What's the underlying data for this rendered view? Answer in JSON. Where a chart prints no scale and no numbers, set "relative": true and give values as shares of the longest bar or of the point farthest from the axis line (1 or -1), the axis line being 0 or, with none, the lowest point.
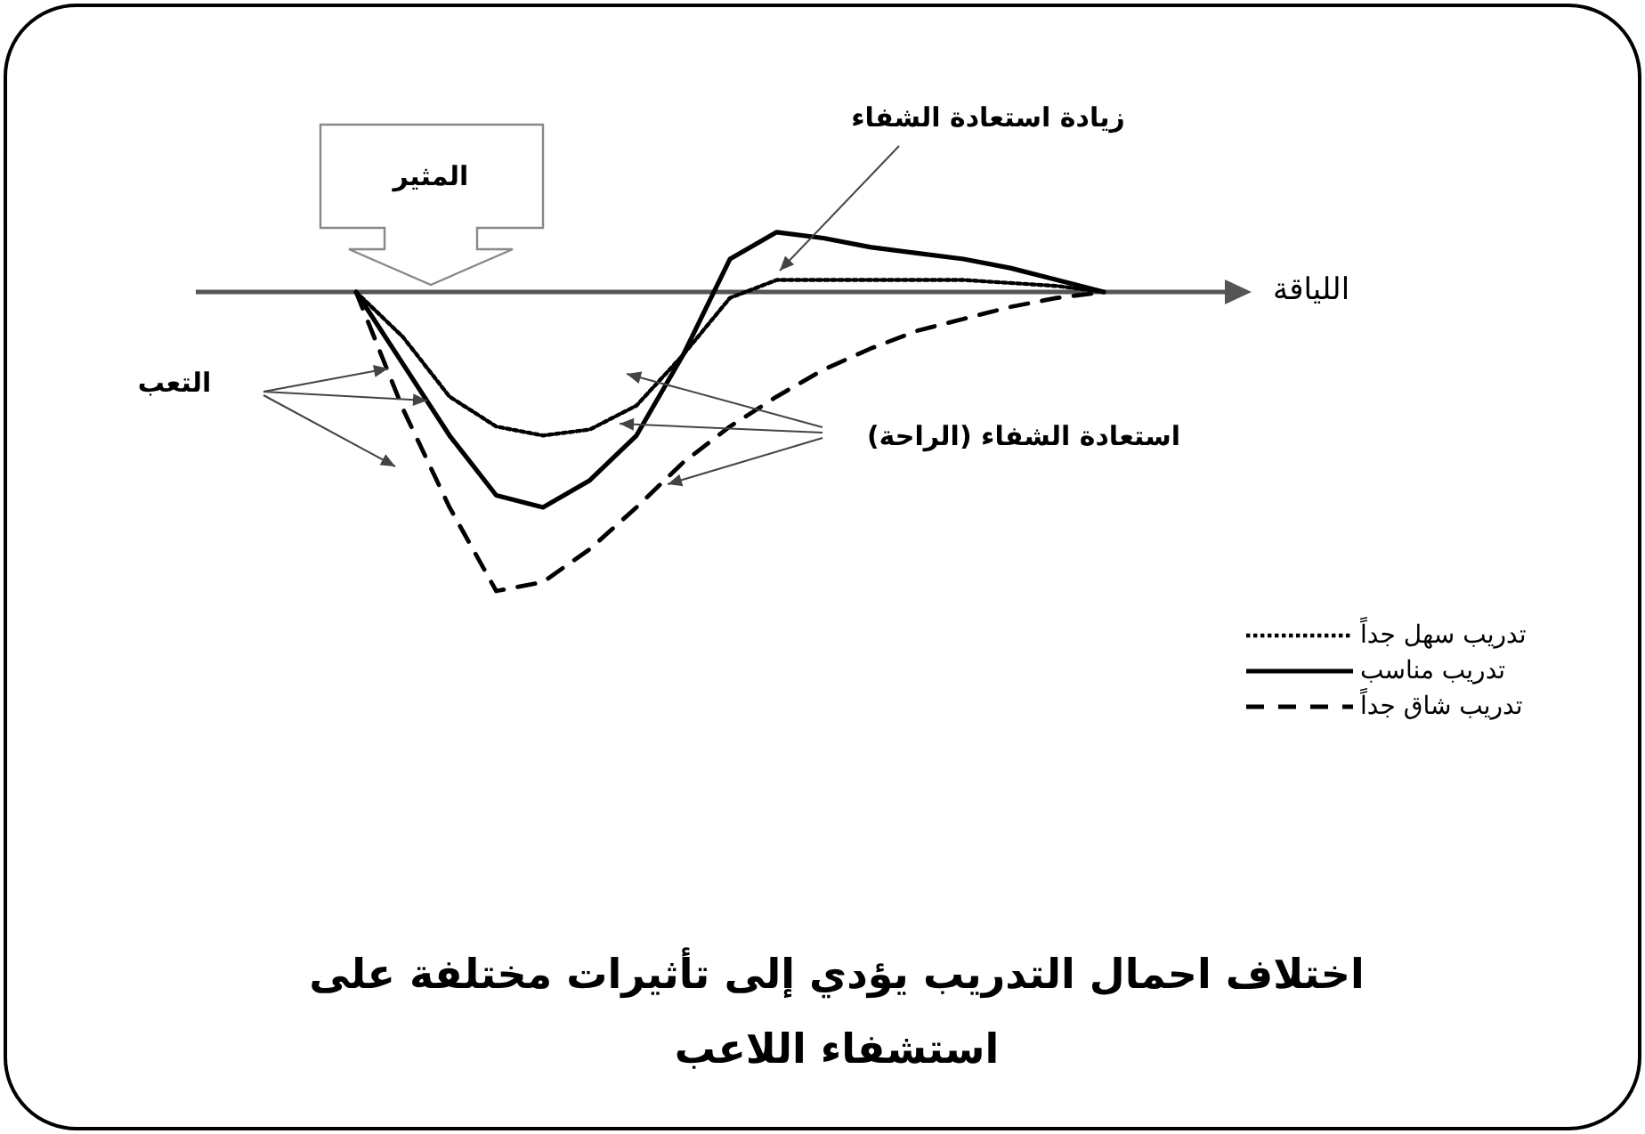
{
  "chart_data": {
    "type": "line",
    "relative": true,
    "title": "اختلاف احمال التدريب يؤدي إلى تأثيرات مختلفة على استشفاء اللاعب",
    "xlabel": "اللياقة",
    "annotations": [
      "المثير",
      "زيادة استعادة الشفاء",
      "التعب",
      "استعادة الشفاء (الراحة)"
    ],
    "categories": [
      null,
      null,
      null,
      null,
      null,
      null,
      null,
      null,
      null,
      null,
      null,
      null,
      null,
      null,
      null,
      null,
      null
    ],
    "series": [
      {
        "name": "تدريب سهل جداً",
        "color": "#000000",
        "line_style": "dotted",
        "values": [
          0,
          -0.15,
          -0.35,
          -0.45,
          -0.48,
          -0.46,
          -0.38,
          -0.21,
          -0.02,
          0.04,
          0.04,
          0.04,
          0.04,
          0.04,
          0.03,
          0.02,
          0
        ]
      },
      {
        "name": "تدريب مناسب",
        "color": "#000000",
        "line_style": "solid",
        "values": [
          0,
          -0.24,
          -0.48,
          -0.68,
          -0.72,
          -0.63,
          -0.48,
          -0.21,
          0.11,
          0.2,
          0.18,
          0.15,
          0.13,
          0.11,
          0.08,
          0.04,
          0
        ]
      },
      {
        "name": "تدريب شاق جداً",
        "color": "#000000",
        "line_style": "dashed",
        "values": [
          0,
          -0.39,
          -0.72,
          -1,
          -0.97,
          -0.86,
          -0.72,
          -0.57,
          -0.45,
          -0.35,
          -0.26,
          -0.19,
          -0.13,
          -0.09,
          -0.05,
          -0.02,
          0
        ]
      }
    ],
    "legend": "right"
  }
}
